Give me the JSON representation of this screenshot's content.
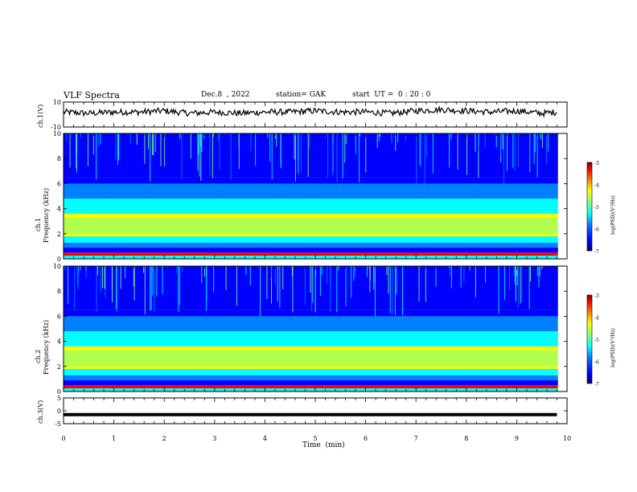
{
  "header": {
    "title": "VLF Spectra",
    "date": "Dec.8  , 2022",
    "station": "station= GAK",
    "start_ut": "start  UT =  0 : 20 : 0"
  },
  "colors": {
    "axis": "#000000",
    "background": "#ffffff",
    "colormap": [
      "#00007f",
      "#0000ff",
      "#0080ff",
      "#00ffff",
      "#80ff80",
      "#ffff00",
      "#ff8000",
      "#ff0000",
      "#7f0000"
    ]
  },
  "chart_data": [
    {
      "type": "line",
      "panel": "ch1-waveform",
      "ylabel": "ch.1(V)",
      "ylim": [
        -10,
        10
      ],
      "yticks": [
        "10",
        "-10"
      ],
      "x": [
        0,
        0.5,
        1,
        1.5,
        2,
        2.5,
        3,
        3.5,
        4,
        4.5,
        5,
        5.5,
        6,
        6.5,
        7,
        7.5,
        8,
        8.5,
        9,
        9.5,
        9.8
      ],
      "values": [
        2,
        1,
        2,
        2,
        3,
        1,
        2,
        1,
        2,
        2,
        3,
        2,
        2,
        1,
        3,
        4,
        3,
        2,
        3,
        1,
        2
      ]
    },
    {
      "type": "heatmap",
      "panel": "ch1-spectrogram",
      "ylabel": "ch.1\nFrequency  (kHz)",
      "ylim": [
        0,
        10
      ],
      "yticks": [
        "10",
        "8",
        "6",
        "4",
        "2",
        "0"
      ],
      "colorbar": {
        "label": "log(PSD)(V²/Hz)",
        "range": [
          -7,
          -3
        ],
        "ticks": [
          "-3",
          "-4",
          "-5",
          "-6",
          "-7"
        ]
      }
    },
    {
      "type": "heatmap",
      "panel": "ch2-spectrogram",
      "ylabel": "ch.2\nFrequency  (kHz)",
      "ylim": [
        0,
        10
      ],
      "yticks": [
        "10",
        "8",
        "6",
        "4",
        "2",
        "0"
      ],
      "colorbar": {
        "label": "log(PSD)(V²/Hz)",
        "range": [
          -7,
          -3
        ],
        "ticks": [
          "-3",
          "-4",
          "-5",
          "-6",
          "-7"
        ]
      }
    },
    {
      "type": "line",
      "panel": "ch3-waveform",
      "ylabel": "ch.3(V)",
      "ylim": [
        -5,
        5
      ],
      "yticks": [
        "5",
        "0",
        "-5"
      ],
      "x": [
        0,
        9.8
      ],
      "values": [
        -1.5,
        -1.5
      ]
    }
  ],
  "xaxis": {
    "label": "Time  (min)",
    "ticks": [
      "0",
      "1",
      "2",
      "3",
      "4",
      "5",
      "6",
      "7",
      "8",
      "9",
      "10"
    ],
    "xlim": [
      0,
      10
    ]
  }
}
